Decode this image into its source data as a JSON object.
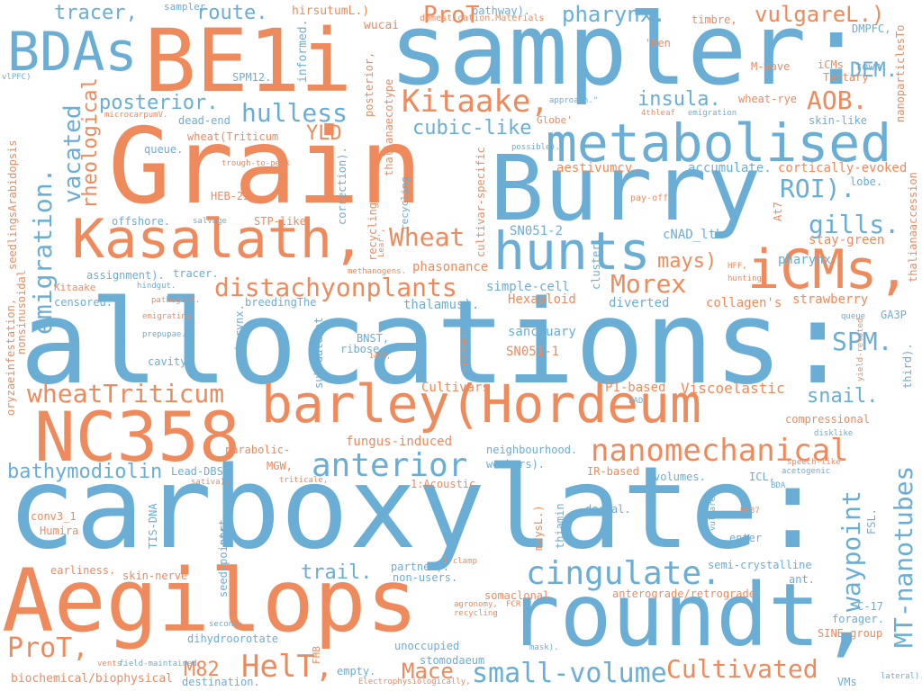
{
  "colors": {
    "blue": "#6aaed6",
    "orange": "#ef8a5c",
    "background": "#ffffff"
  },
  "words": {
    "allocations": "allocations:",
    "carboxylate": "carboxylate:",
    "grain": "Grain",
    "sampler": "sampler:",
    "burry": "Burry",
    "aegilops": "Aegilops",
    "roundt": "roundt,",
    "be1i": "BE1i",
    "metabolised": "metabolised",
    "barley": "barley(Hordeum",
    "nc358": "NC358",
    "kasalath": "Kasalath,",
    "icms_large": "iCMs,",
    "hunts": "hunts",
    "bdas": "BDAs",
    "wheat_triticum": "wheatTriticum",
    "anterior": "anterior",
    "cingulate": "cingulate.",
    "nanomechanical": "nanomechanical",
    "cultivated": "Cultivated",
    "small_volume": "small-volume",
    "helt": "HelT,",
    "prot_a": "ProT,",
    "prot_b": "ProT",
    "mace": "Mace",
    "distachyon": "distachyonplants",
    "kitaake": "Kitaake,",
    "hulless": "hulless",
    "emigration": "emigration.",
    "vacated": "vacated",
    "rheological": "rheological",
    "waypoint": "waypoint",
    "mt_nanotubes": "MT-nanotubes",
    "morex": "Morex",
    "spm": "SPM.",
    "roi": "ROI).",
    "gills": "gills.",
    "aob": "AOB.",
    "pharynx_a": "pharynx.",
    "vulgarel": "vulgareL.)",
    "tracer_a": "tracer,",
    "route": "route.",
    "posterior_a": "posterior.",
    "insula": "insula.",
    "dem": "DEM.",
    "cubic_like": "cubic-like",
    "yld": "YLD",
    "wheat": "Wheat",
    "mays": "mays)",
    "bathymodiolin": "bathymodiolin",
    "trail": "trail.",
    "snail": "snail.",
    "m82": "M82",
    "fungus": "fungus-induced",
    "viscoelastic": "Viscoelastic",
    "p1based": "P1-based",
    "cultivars": "Cultivars",
    "sanctuary": "sanctuary",
    "sn0511": "SN051-1",
    "sn0512": "SN051-2",
    "hexaploid": "Hexaploid",
    "collagens": "collagen's",
    "strawberry": "strawberry",
    "phasonance": "phasonance",
    "simple_cell": "simple-cell",
    "thalamus": "thalamus).",
    "diverted": "diverted",
    "pharynx_b": "pharynx",
    "stay_green": "stay-green",
    "cnad": "cNAD_ltb",
    "accumulate": "accumulate.",
    "cortically": "cortically-evoked",
    "aestivum": "aestivumcv.",
    "lobe": "lobe.",
    "pay_off": "pay-off.",
    "at7": "At7",
    "hff": "HFF,",
    "hunting": "hunting.",
    "cluster": "cluster.",
    "recycling_a": "recycling",
    "cultivar_specific": "cultivar-specific",
    "thaliana_ecotype": "thalianaecotype",
    "posterior_b": "posterior,",
    "informed": "informed.",
    "spm12": "SPM12.",
    "hirsutum": "hirsutumL.)",
    "wucai": "wucai",
    "pathway": "pathway).",
    "sampler_small": "sampler",
    "domestication": "domestication.Materials",
    "timbre": "timbre,",
    "ben": "'Ben",
    "dmpfc": "DMPFC,",
    "town": "town.",
    "icms_small": "iCMs",
    "mwave": "M-wave",
    "tartary": "Tartary",
    "nanoparticles": "nanoparticlesTo",
    "skin_like": "skin-like",
    "wheat_rye": "wheat-rye",
    "fourth_leaf": "4thleaf",
    "emigration_small": "emigration",
    "approach": "approach.\"",
    "globe": "Globe'",
    "possible": "possible).",
    "dead_end": "dead-end",
    "wheat_triticum_small": "wheat(Triticum",
    "queue_a": "queue.",
    "trough": "trough-to-peak",
    "heb25": "HEB-25",
    "stp_like": "STP-like",
    "offshore": "offshore.",
    "salvage": "salvage",
    "correction": "correction).",
    "recycling_b": "recycling.",
    "lear": "Lear',",
    "methanogens": "methanogens.",
    "assignment": "assignment).",
    "tracer_b": "tracer.",
    "hindgut": "hindgut.",
    "kitaake_small": "Kitaake",
    "pathogenz": "pathogenZ.",
    "censored": "censored.",
    "breeding": "breedingThe",
    "emigrating": "emigrating",
    "prepupae": "prepupae.",
    "cavity": "cavity.",
    "pharynx_c": "pharynx.",
    "bnst": "BNST,",
    "ribose": "ribose.",
    "n1428": "1428,",
    "sub_dataset": "sub-dataset",
    "agronomic": "agronomic",
    "parabolic": "parabolic-",
    "mgw": "MGW,",
    "triticale": "triticale,",
    "lead_dbs": "Lead-DBS.",
    "sativa": "sativa),",
    "one_acoustic": "1:Acoustic",
    "neighbourhood": "neighbourhood.",
    "workers": "workers).",
    "ir_based": "IR-based",
    "volumes": "volumes.",
    "icl": "ICL,",
    "acetogenic": "acetogenic",
    "bda": "BDA",
    "speech_like": "speech-like",
    "disklike": "disklike",
    "compressional": "compressional",
    "fad": "FAD.",
    "ku37": "KU37",
    "vulgare": "vulgare),",
    "fsl": "FSL.",
    "dorsal": "dorsal.",
    "thiamin": "thiamin",
    "maysl": "maysL.)",
    "enter": "enter",
    "conv3": "conv3_1",
    "humira": "Humira",
    "ttis_dna": "TIS-DNA",
    "seed_points": "seed-points",
    "port": "port,",
    "earliness": "earliness.",
    "skin_nerve": "skin-nerve",
    "partner": "partner).",
    "non_users": "non-users.",
    "i_clamp": "I-clamp",
    "semi_crystalline": "semi-crystalline",
    "ant": "ant.",
    "anterograde": "anterograde/retrograde",
    "somaclonal": "somaclonal",
    "c17": "C-17",
    "forager": "forager.",
    "sine_group": "SINE-group",
    "second": "second:",
    "dihydroorotate": "dihydroorotate",
    "fcr": "FCR",
    "agronomy": "agronomy,",
    "recycling_c": "recycling",
    "unoccupied": "unoccupied",
    "mask": "mask).",
    "stomodaeum": "stomodaeum",
    "empty": "empty.",
    "fhb": "FHB",
    "vents": "vents.",
    "field_maintained": "field-maintained",
    "biochemical": "biochemical/biophysical",
    "destination": "destination.",
    "electrophys": "Electrophysiologically,",
    "vms": "VMs",
    "lateral": "lateral).",
    "third": "third).",
    "yield_related": "yield-related",
    "queue_b": "queue",
    "ga3p": "GA3P",
    "oryzae": "oryzaeinfestation,",
    "nonsinusoidal": "nonsinusoidal",
    "seedlings": "seedlingsArabidopsis",
    "vlpfc": "vlPFC)",
    "microcarpum": "microcarpumV.",
    "thaliana_accession": "thalianaaccession"
  }
}
